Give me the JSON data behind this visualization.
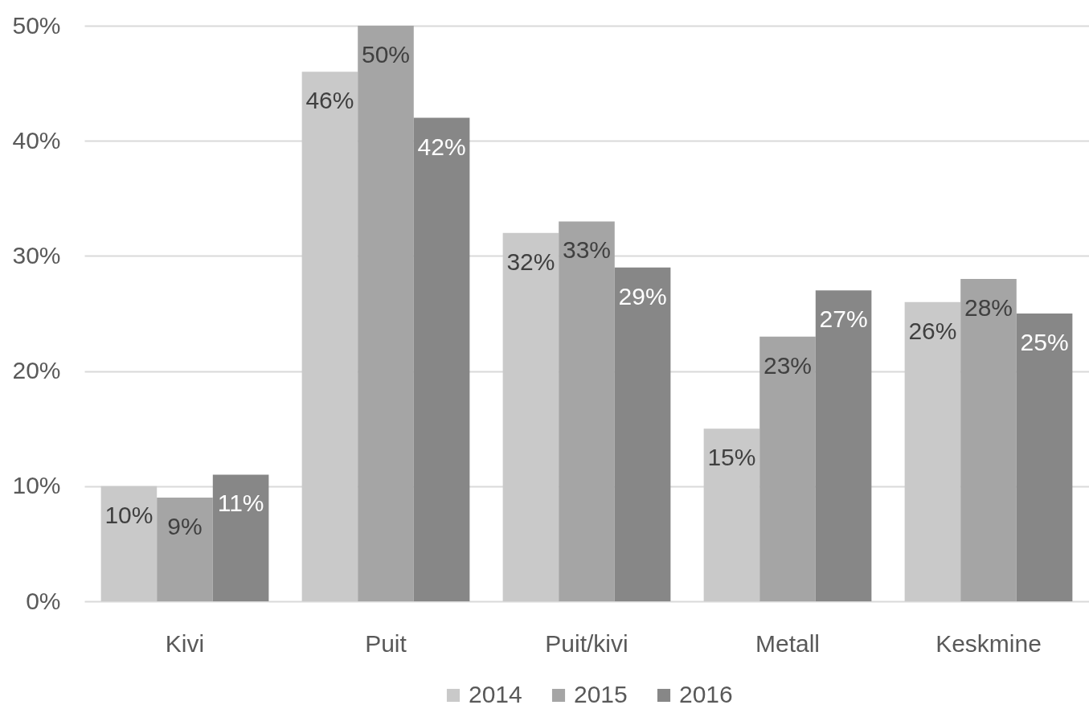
{
  "chart_data": {
    "type": "bar",
    "categories": [
      "Kivi",
      "Puit",
      "Puit/kivi",
      "Metall",
      "Keskmine"
    ],
    "series": [
      {
        "name": "2014",
        "color": "#c9c9c9",
        "values": [
          10,
          46,
          32,
          15,
          26
        ],
        "value_labels": [
          "10%",
          "46%",
          "32%",
          "15%",
          "26%"
        ]
      },
      {
        "name": "2015",
        "color": "#a5a5a5",
        "values": [
          9,
          50,
          33,
          23,
          28
        ],
        "value_labels": [
          "9%",
          "50%",
          "33%",
          "23%",
          "28%"
        ]
      },
      {
        "name": "2016",
        "color": "#878787",
        "values": [
          11,
          42,
          29,
          27,
          25
        ],
        "value_labels": [
          "11%",
          "42%",
          "29%",
          "27%",
          "25%"
        ]
      }
    ],
    "ylim": [
      0,
      50
    ],
    "yticks": [
      {
        "value": 0,
        "label": "0%"
      },
      {
        "value": 10,
        "label": "10%"
      },
      {
        "value": 20,
        "label": "20%"
      },
      {
        "value": 30,
        "label": "30%"
      },
      {
        "value": 40,
        "label": "40%"
      },
      {
        "value": 50,
        "label": "50%"
      }
    ],
    "grid": "y",
    "legend": "bottom"
  }
}
